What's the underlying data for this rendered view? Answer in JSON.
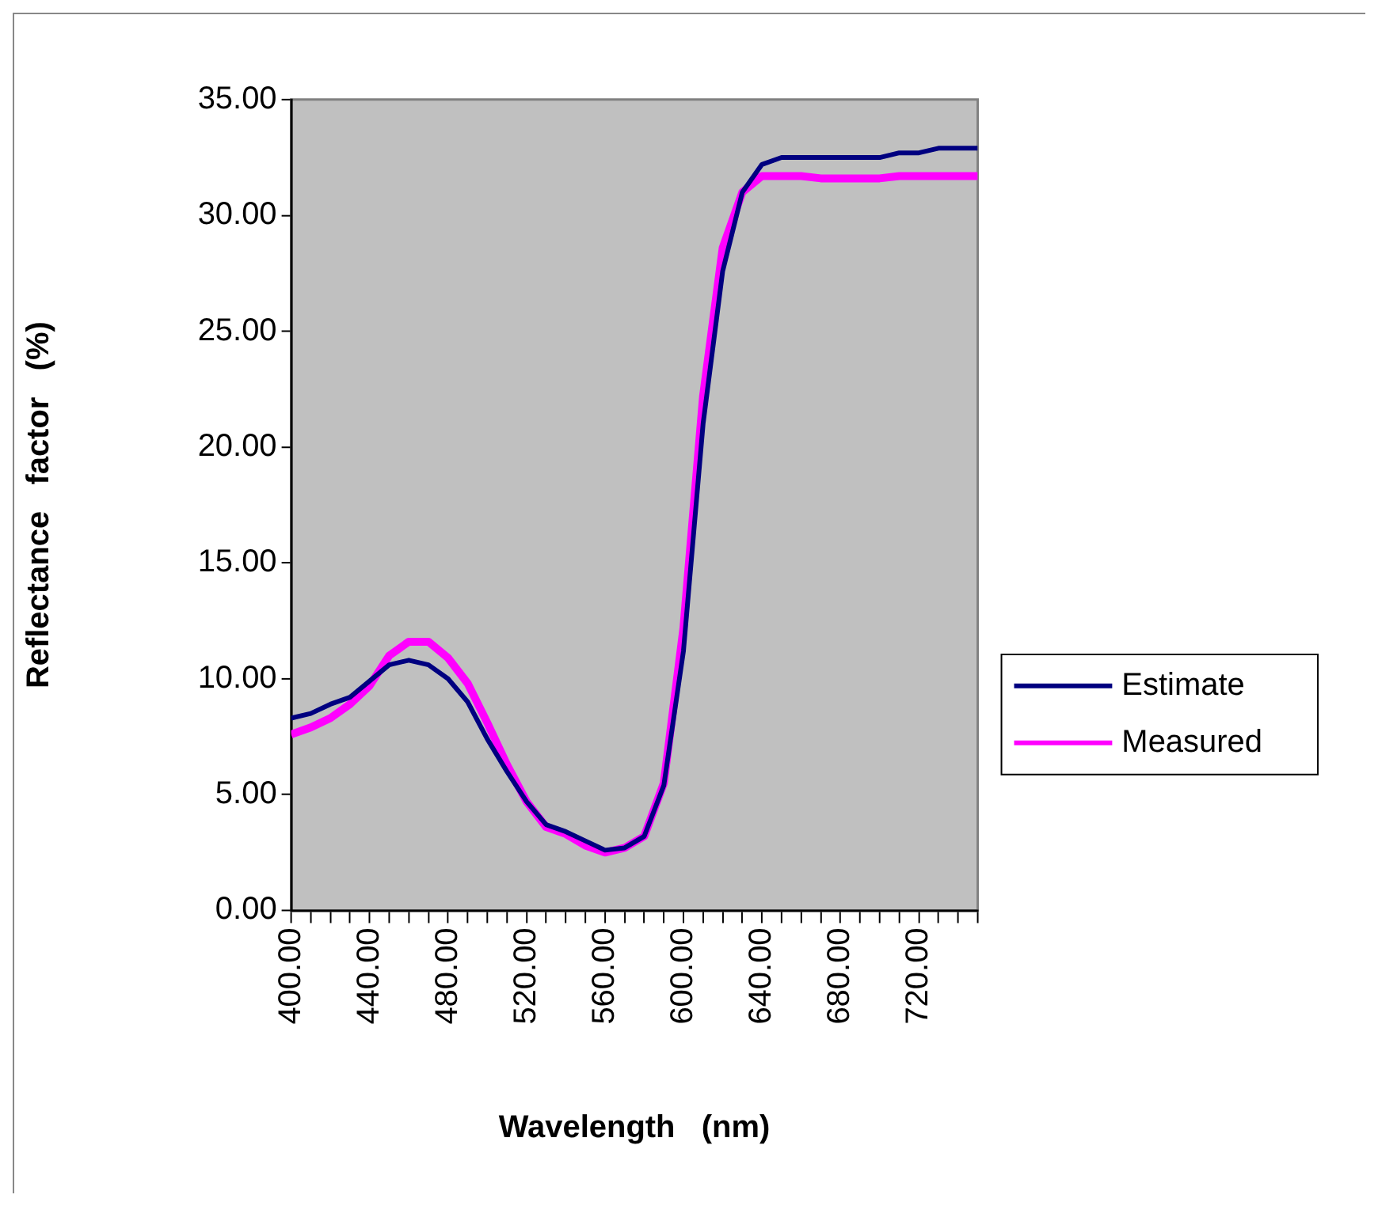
{
  "chart_data": {
    "type": "line",
    "xlabel": "Wavelength   (nm)",
    "ylabel": "Reflectance   factor   (%)",
    "x": [
      400,
      410,
      420,
      430,
      440,
      450,
      460,
      470,
      480,
      490,
      500,
      510,
      520,
      530,
      540,
      550,
      560,
      570,
      580,
      590,
      600,
      610,
      620,
      630,
      640,
      650,
      660,
      670,
      680,
      690,
      700,
      710,
      720,
      730,
      740,
      750
    ],
    "series": [
      {
        "name": "Estimate",
        "color": "#000080",
        "values": [
          8.3,
          8.5,
          8.9,
          9.2,
          9.9,
          10.6,
          10.8,
          10.6,
          10.0,
          9.0,
          7.4,
          6.0,
          4.7,
          3.7,
          3.4,
          3.0,
          2.6,
          2.7,
          3.2,
          5.4,
          11.2,
          21.0,
          27.6,
          31.0,
          32.2,
          32.5,
          32.5,
          32.5,
          32.5,
          32.5,
          32.5,
          32.7,
          32.7,
          32.9,
          32.9,
          32.9
        ]
      },
      {
        "name": "Measured",
        "color": "#ff00ff",
        "values": [
          7.6,
          7.9,
          8.3,
          8.9,
          9.7,
          11.0,
          11.6,
          11.6,
          10.9,
          9.8,
          8.1,
          6.3,
          4.7,
          3.6,
          3.3,
          2.8,
          2.5,
          2.7,
          3.2,
          5.5,
          12.2,
          22.2,
          28.6,
          31.0,
          31.7,
          31.7,
          31.7,
          31.6,
          31.6,
          31.6,
          31.6,
          31.7,
          31.7,
          31.7,
          31.7,
          31.7
        ]
      }
    ],
    "xlim": [
      400,
      750
    ],
    "xticks": [
      {
        "value": 400,
        "label": "400.00"
      },
      {
        "value": 410,
        "label": null
      },
      {
        "value": 420,
        "label": null
      },
      {
        "value": 430,
        "label": null
      },
      {
        "value": 440,
        "label": "440.00"
      },
      {
        "value": 450,
        "label": null
      },
      {
        "value": 460,
        "label": null
      },
      {
        "value": 470,
        "label": null
      },
      {
        "value": 480,
        "label": "480.00"
      },
      {
        "value": 490,
        "label": null
      },
      {
        "value": 500,
        "label": null
      },
      {
        "value": 510,
        "label": null
      },
      {
        "value": 520,
        "label": "520.00"
      },
      {
        "value": 530,
        "label": null
      },
      {
        "value": 540,
        "label": null
      },
      {
        "value": 550,
        "label": null
      },
      {
        "value": 560,
        "label": "560.00"
      },
      {
        "value": 570,
        "label": null
      },
      {
        "value": 580,
        "label": null
      },
      {
        "value": 590,
        "label": null
      },
      {
        "value": 600,
        "label": "600.00"
      },
      {
        "value": 610,
        "label": null
      },
      {
        "value": 620,
        "label": null
      },
      {
        "value": 630,
        "label": null
      },
      {
        "value": 640,
        "label": "640.00"
      },
      {
        "value": 650,
        "label": null
      },
      {
        "value": 660,
        "label": null
      },
      {
        "value": 670,
        "label": null
      },
      {
        "value": 680,
        "label": "680.00"
      },
      {
        "value": 690,
        "label": null
      },
      {
        "value": 700,
        "label": null
      },
      {
        "value": 710,
        "label": null
      },
      {
        "value": 720,
        "label": "720.00"
      },
      {
        "value": 730,
        "label": null
      },
      {
        "value": 740,
        "label": null
      },
      {
        "value": 750,
        "label": null
      }
    ],
    "ylim": [
      0,
      35
    ],
    "yticks": [
      {
        "value": 0,
        "label": "0.00"
      },
      {
        "value": 5,
        "label": "5.00"
      },
      {
        "value": 10,
        "label": "10.00"
      },
      {
        "value": 15,
        "label": "15.00"
      },
      {
        "value": 20,
        "label": "20.00"
      },
      {
        "value": 25,
        "label": "25.00"
      },
      {
        "value": 30,
        "label": "30.00"
      },
      {
        "value": 35,
        "label": "35.00"
      }
    ],
    "grid": false,
    "legend": "right",
    "line_style": "solid"
  }
}
